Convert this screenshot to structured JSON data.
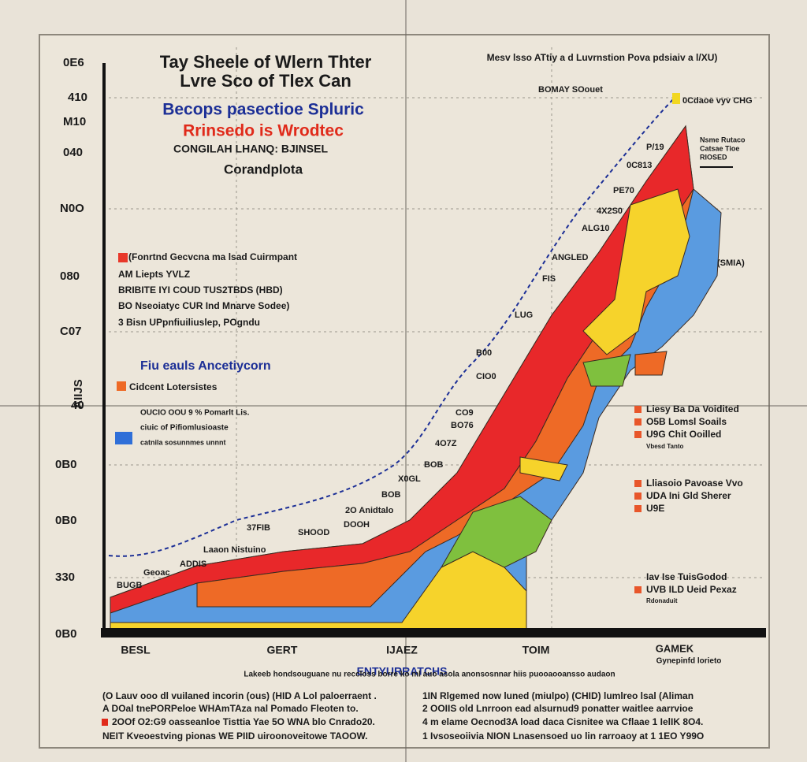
{
  "title": {
    "line1": "Tay Sheele of Wlern Thter",
    "line2": "Lvre Sco of Tlex Can"
  },
  "subtitle": "Becops pasectioe Spluric",
  "highlight": "Rrinsedo is Wrodtec",
  "caption": "CONGILAH LHANQ: BJINSEL",
  "subcaption": "Corandplota",
  "right_header": "Mesv lsso ATtiy a d Luvrnstion Pova pdsiaiv a l/XU)",
  "y_axis_title": "AIIJS",
  "y_axis_labels": [
    "0E6",
    "410",
    "M10",
    "040",
    "N0O",
    "080",
    "C07",
    "40",
    "0B0",
    "0B0",
    "330",
    "0B0"
  ],
  "x_axis_labels": [
    "BESL",
    "GERT",
    "IJAEZ",
    "TOIM",
    "GAMEK"
  ],
  "x_axis_note": "Gynepinfd lorieto",
  "x_axis_title": "ENTYURRATCHS",
  "curve_labels": [
    "BOMAY SOouet",
    "0Cdaoe vyv CHG",
    "P/19",
    "0C813",
    "PE70",
    "4X2S0",
    "ALG10",
    "ANGLED",
    "FIS",
    "LUG",
    "B00",
    "CIO0",
    "CO9",
    "BO76",
    "4O7Z",
    "BOB",
    "X0GL",
    "BOB",
    "2O Anidtalo",
    "DOOH",
    "37FIB",
    "SHOOD",
    "Laaon Nistuino",
    "ADDIS",
    "Geoac",
    "BUGB",
    "(SMIA)"
  ],
  "top_notes": [
    "Nsme Rutaco",
    "Catsae Tioe",
    "RIOSED"
  ],
  "left_legend": {
    "items": [
      "(Fonrtnd Gecvcna ma lsad Cuirmpant",
      "AM Liepts YVLZ",
      "BRIBITE IYI COUD TUS2TBDS (HBD)",
      "BO Nseoiatyc CUR Ind Mnarve Sodee)",
      "3 Bisn UPpnfiuiliuslep, POgndu"
    ],
    "heading": "Fiu eauls Ancetiycorn",
    "note": "Cidcent Lotersistes",
    "block": [
      "OUCIO OOU 9 % Pomarlt Lis.",
      "ciuic of Pifiomlusioaste",
      "catnila sosunnmes unnnt"
    ]
  },
  "right_legend": [
    [
      "Liesy Ba Da Voidited",
      "O5B Lomsl Soails",
      "U9G Chit Ooilled",
      "Vbesd Tanto"
    ],
    [
      "Lliasoio Pavoase Vvo",
      "UDA Ini Gld Sherer",
      "U9E"
    ],
    [
      "Iav Ise TuisGodod",
      "UVB ILD Ueid Pexaz",
      "Rdonaduit"
    ]
  ],
  "footer": {
    "caption": "Lakeeb hondsouguane nu  reccloss borre ko    ml auo asola anonsosnnar hiis puooaooansso audaon",
    "left": [
      "(O Lauv ooo dl vuilaned incorin (ous) (HID A Lol paloerraent .",
      "A DOal tnePORPeloe WHAmTAza nal Pomado Fleoten to.",
      "2OOf O2:G9 oasseanloe Tisttia Yae 5O WNA blo Cnrado20.",
      "NEIT Kveoestving pionas WE PIID uiroonoveitowe TAOOW."
    ],
    "right": [
      "1IN Rlgemed now luned (miulpo) (CHID) lumlreo lsal (Aliman",
      "2 OOIIS old Lnrroon ead alsurnud9 ponatter waitlee aarrvioe",
      "4 m elame Oecnod3A load daca Cisnitee wa Cflaae 1 IelIK 8O4.",
      "1 Ivsoseoiivia NION Lnasensoed uo lin rarroaoy at 1 1EO Y99O"
    ]
  }
}
